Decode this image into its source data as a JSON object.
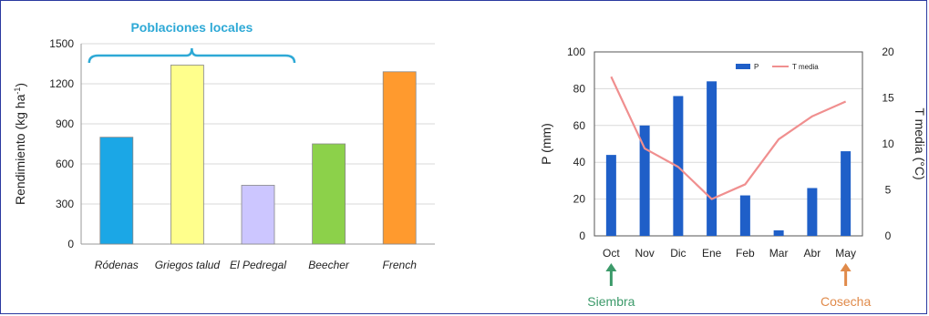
{
  "chart_data": [
    {
      "type": "bar",
      "categories": [
        "Ródenas",
        "Griegos talud",
        "El Pedregal",
        "Beecher",
        "French"
      ],
      "values": [
        800,
        1340,
        440,
        750,
        1290
      ],
      "colors": [
        "#1ba7e6",
        "#ffff8c",
        "#ccc6ff",
        "#8cd14a",
        "#ff9a2e"
      ],
      "ylabel_main": "Rendimiento (kg ha",
      "ylabel_sup": "-1",
      "ylabel_end": ")",
      "ylim": [
        0,
        1500
      ],
      "yticks": [
        0,
        300,
        600,
        900,
        1200,
        1500
      ],
      "grid": true,
      "annotation": {
        "text": "Poblaciones locales",
        "color": "#2ea9d6",
        "spans_categories": [
          "Ródenas",
          "El Pedregal"
        ]
      }
    },
    {
      "type": "bar+line",
      "categories": [
        "Oct",
        "Nov",
        "Dic",
        "Ene",
        "Feb",
        "Mar",
        "Abr",
        "May"
      ],
      "series": [
        {
          "name": "P",
          "type": "bar",
          "axis": "left",
          "color": "#1f5fc8",
          "values": [
            44,
            60,
            76,
            84,
            22,
            3,
            26,
            46
          ]
        },
        {
          "name": "T media",
          "type": "line",
          "axis": "right",
          "color": "#f08f8f",
          "values": [
            17.3,
            9.5,
            7.5,
            4.0,
            5.6,
            10.5,
            13.0,
            14.6
          ]
        }
      ],
      "ylabel": "P (mm)",
      "ylabel_right": "T media (°C)",
      "ylim": [
        0,
        100
      ],
      "yticks": [
        0,
        20,
        40,
        60,
        80,
        100
      ],
      "ylim_right": [
        0,
        20
      ],
      "yticks_right": [
        0,
        5,
        10,
        15,
        20
      ],
      "grid": true,
      "legend_position": "top-right",
      "annotations": [
        {
          "text": "Siembra",
          "category": "Oct",
          "color": "#3c9a6a"
        },
        {
          "text": "Cosecha",
          "category": "May",
          "color": "#e08a4a"
        }
      ]
    }
  ]
}
